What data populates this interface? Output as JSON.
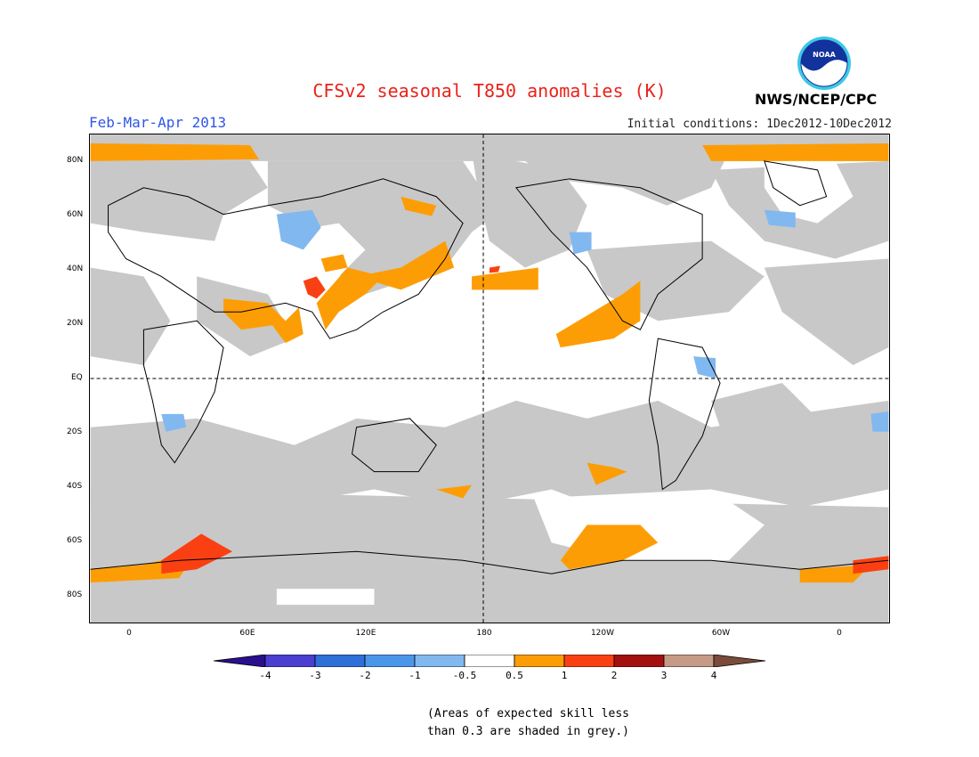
{
  "title": "CFSv2 seasonal T850 anomalies (K)",
  "season": "Feb-Mar-Apr 2013",
  "initial_conditions": "Initial conditions: 1Dec2012-10Dec2012",
  "agency": "NWS/NCEP/CPC",
  "logo_text": "NOAA",
  "note_line1": "(Areas of expected skill less",
  "note_line2": "than 0.3 are shaded in grey.)",
  "lat_labels": [
    "80N",
    "60N",
    "40N",
    "20N",
    "EQ",
    "20S",
    "40S",
    "60S",
    "80S"
  ],
  "lon_labels": [
    "0",
    "60E",
    "120E",
    "180",
    "120W",
    "60W",
    "0"
  ],
  "colorbar": {
    "labels": [
      "-4",
      "-3",
      "-2",
      "-1",
      "-0.5",
      "0.5",
      "1",
      "2",
      "3",
      "4"
    ],
    "colors": [
      "#2a0f8f",
      "#4a3fcf",
      "#2f6fd8",
      "#4a97ea",
      "#82b8f0",
      "#ffffff",
      "#fd9d05",
      "#fa4012",
      "#a2110f",
      "#c59a86",
      "#7a4b3a"
    ]
  },
  "colors": {
    "grey_low_skill": "#c8c8c8",
    "title_red": "#e8231c",
    "season_blue": "#2f56e8"
  }
}
